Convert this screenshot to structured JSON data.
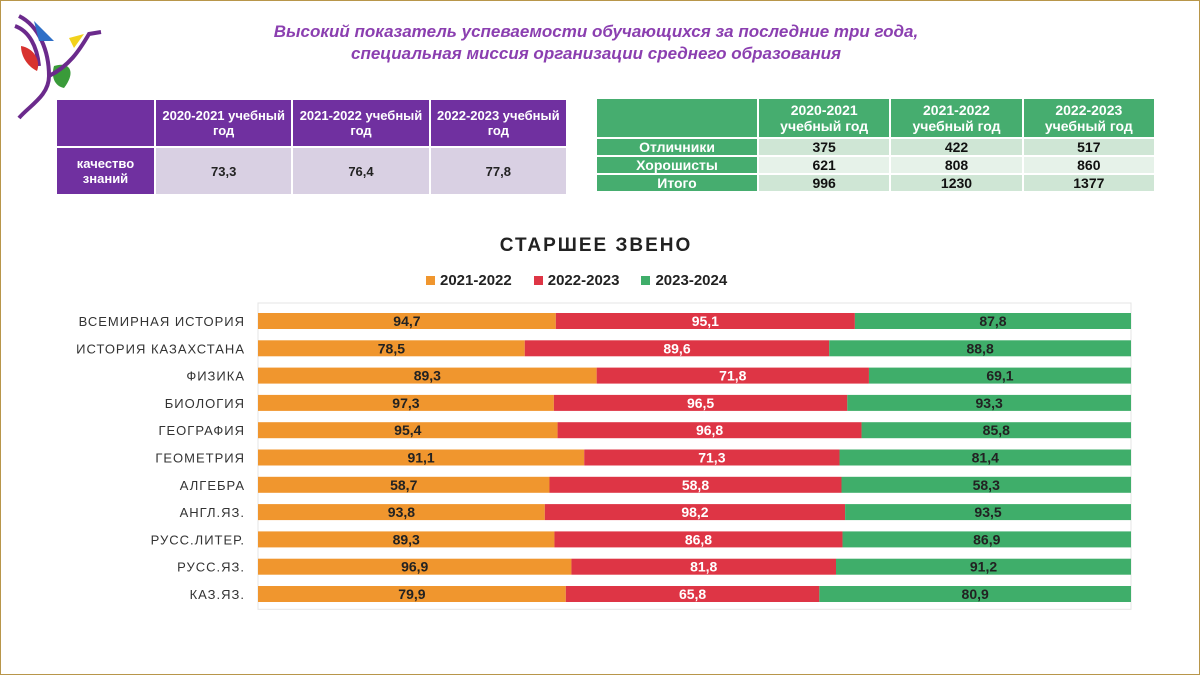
{
  "title_line1": "Высокий показатель успеваемости обучающихся за последние три года,",
  "title_line2": "специальная миссия организации среднего образования",
  "quality_table": {
    "headers": [
      "2020-2021 учебный год",
      "2021-2022 учебный год",
      "2022-2023 учебный год"
    ],
    "row_label": "качество знаний",
    "values": [
      "73,3",
      "76,4",
      "77,8"
    ]
  },
  "students_table": {
    "headers": [
      "2020-2021 учебный год",
      "2021-2022 учебный год",
      "2022-2023 учебный год"
    ],
    "rows": [
      {
        "label": "Отличники",
        "values": [
          "375",
          "422",
          "517"
        ]
      },
      {
        "label": "Хорошисты",
        "values": [
          "621",
          "808",
          "860"
        ]
      },
      {
        "label": "Итого",
        "values": [
          "996",
          "1230",
          "1377"
        ]
      }
    ]
  },
  "chart_data": {
    "type": "bar",
    "stacked": "100%",
    "orientation": "horizontal",
    "title": "СТАРШЕЕ ЗВЕНО",
    "legend_position": "top",
    "categories": [
      "ВСЕМИРНАЯ ИСТОРИЯ",
      "ИСТОРИЯ КАЗАХСТАНА",
      "ФИЗИКА",
      "БИОЛОГИЯ",
      "ГЕОГРАФИЯ",
      "ГЕОМЕТРИЯ",
      "АЛГЕБРА",
      "АНГЛ.ЯЗ.",
      "РУСС.ЛИТЕР.",
      "РУСС.ЯЗ.",
      "КАЗ.ЯЗ."
    ],
    "series": [
      {
        "name": "2021-2022",
        "color": "#f0962e",
        "values": [
          94.7,
          78.5,
          89.3,
          97.3,
          95.4,
          91.1,
          58.7,
          93.8,
          89.3,
          96.9,
          79.9
        ]
      },
      {
        "name": "2022-2023",
        "color": "#de3545",
        "values": [
          95.1,
          89.6,
          71.8,
          96.5,
          96.8,
          71.3,
          58.8,
          98.2,
          86.8,
          81.8,
          65.8
        ]
      },
      {
        "name": "2023-2024",
        "color": "#3fae6a",
        "values": [
          87.8,
          88.8,
          69.1,
          93.3,
          85.8,
          81.4,
          58.3,
          93.5,
          86.9,
          91.2,
          80.9
        ]
      }
    ]
  }
}
